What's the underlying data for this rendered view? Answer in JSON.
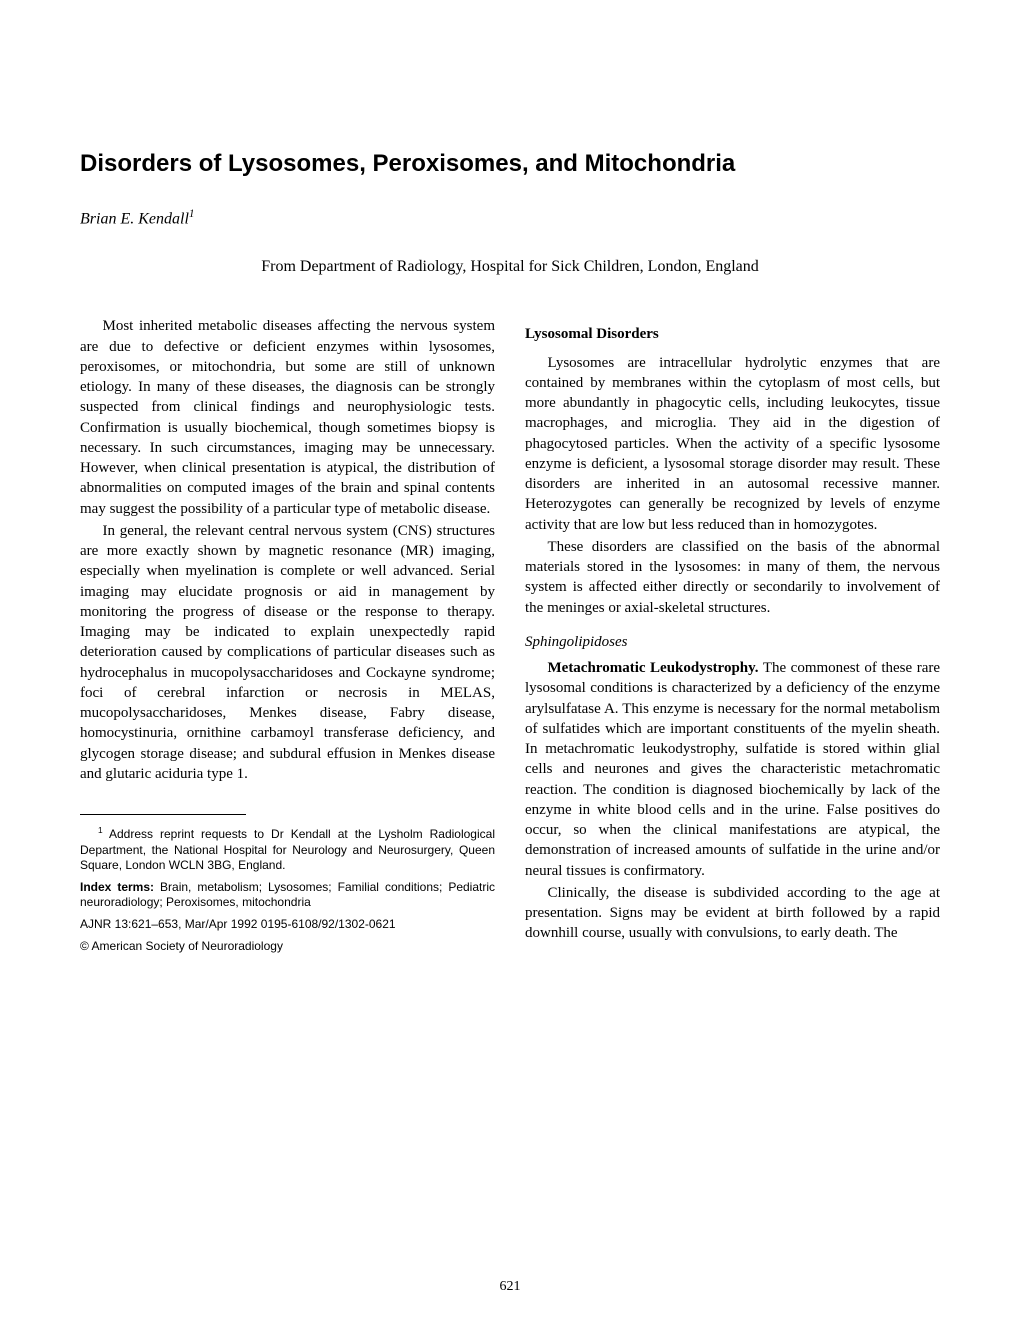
{
  "title": "Disorders of Lysosomes, Peroxisomes, and Mitochondria",
  "author": "Brian E. Kendall",
  "author_sup": "1",
  "affiliation": "From Department of Radiology, Hospital for Sick Children, London, England",
  "left_col": {
    "para1": "Most inherited metabolic diseases affecting the nervous system are due to defective or deficient enzymes within lysosomes, peroxisomes, or mitochondria, but some are still of unknown etiology. In many of these diseases, the diagnosis can be strongly suspected from clinical findings and neurophysiologic tests. Confirmation is usually biochemical, though sometimes biopsy is necessary. In such circumstances, imaging may be unnecessary. However, when clinical presentation is atypical, the distribution of abnormalities on computed images of the brain and spinal contents may suggest the possibility of a particular type of metabolic disease.",
    "para2": "In general, the relevant central nervous system (CNS) structures are more exactly shown by magnetic resonance (MR) imaging, especially when myelination is complete or well advanced. Serial imaging may elucidate prognosis or aid in management by monitoring the progress of disease or the response to therapy. Imaging may be indicated to explain unexpectedly rapid deterioration caused by complications of particular diseases such as hydrocephalus in mucopolysaccharidoses and Cockayne syndrome; foci of cerebral infarction or necrosis in MELAS, mucopolysaccharidoses, Menkes disease, Fabry disease, homocystinuria, ornithine carbamoyl transferase deficiency, and glycogen storage disease; and subdural effusion in Menkes disease and glutaric aciduria type 1."
  },
  "right_col": {
    "heading1": "Lysosomal Disorders",
    "para1": "Lysosomes are intracellular hydrolytic enzymes that are contained by membranes within the cytoplasm of most cells, but more abundantly in phagocytic cells, including leukocytes, tissue macrophages, and microglia. They aid in the digestion of phagocytosed particles. When the activity of a specific lysosome enzyme is deficient, a lysosomal storage disorder may result. These disorders are inherited in an autosomal recessive manner. Heterozygotes can generally be recognized by levels of enzyme activity that are low but less reduced than in homozygotes.",
    "para2": "These disorders are classified on the basis of the abnormal materials stored in the lysosomes: in many of them, the nervous system is affected either directly or secondarily to involvement of the meninges or axial-skeletal structures.",
    "subheading": "Sphingolipidoses",
    "runin": "Metachromatic Leukodystrophy.",
    "para3": " The commonest of these rare lysosomal conditions is characterized by a deficiency of the enzyme arylsulfatase A. This enzyme is necessary for the normal metabolism of sulfatides which are important constituents of the myelin sheath. In metachromatic leukodystrophy, sulfatide is stored within glial cells and neurones and gives the characteristic metachromatic reaction. The condition is diagnosed biochemically by lack of the enzyme in white blood cells and in the urine. False positives do occur, so when the clinical manifestations are atypical, the demonstration of increased amounts of sulfatide in the urine and/or neural tissues is confirmatory.",
    "para4": "Clinically, the disease is subdivided according to the age at presentation. Signs may be evident at birth followed by a rapid downhill course, usually with convulsions, to early death. The"
  },
  "footnotes": {
    "fn1_sup": "1",
    "fn1": " Address reprint requests to Dr Kendall at the Lysholm Radiological Department, the National Hospital for Neurology and Neurosurgery, Queen Square, London WCLN 3BG, England.",
    "index_label": "Index terms:",
    "index_text": " Brain, metabolism; Lysosomes; Familial conditions; Pediatric neuroradiology; Peroxisomes, mitochondria",
    "citation": "AJNR 13:621–653, Mar/Apr 1992 0195-6108/92/1302-0621",
    "copyright": "© American Society of Neuroradiology"
  },
  "page_number": "621"
}
